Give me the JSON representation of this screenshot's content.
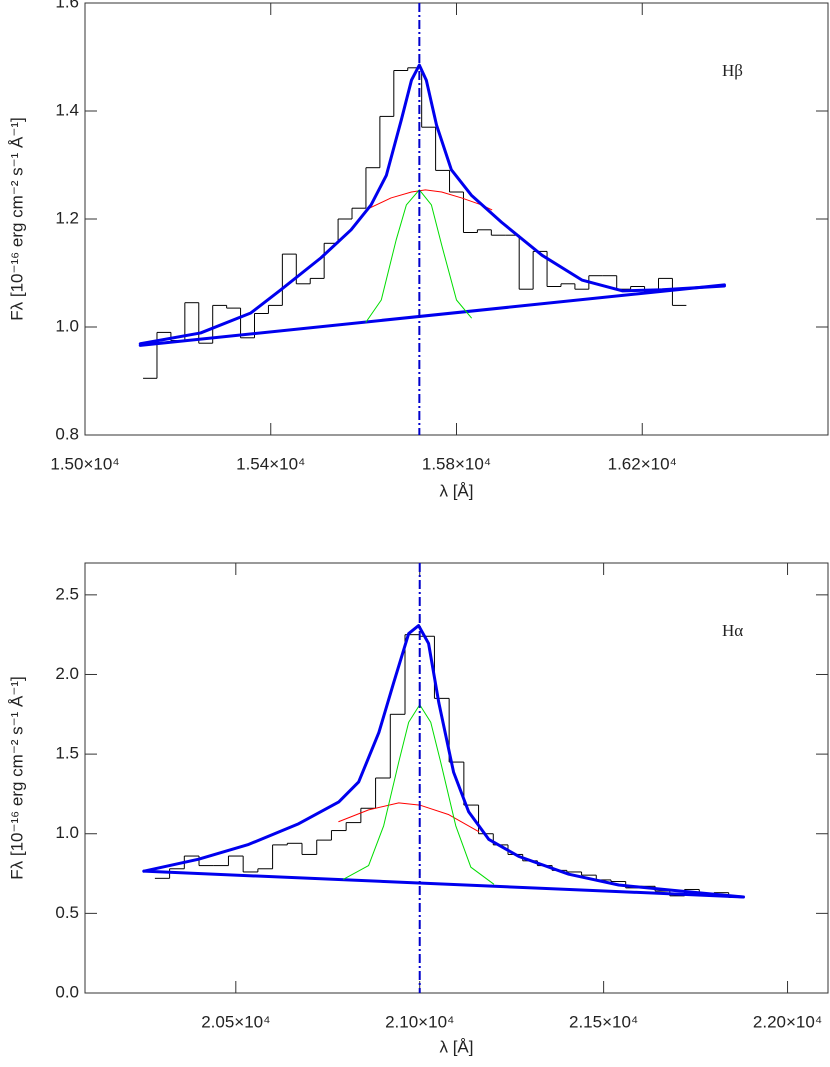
{
  "chart_data": [
    {
      "type": "line",
      "xlabel": "λ [Å]",
      "ylabel": "Fλ [10⁻¹⁶ erg cm⁻² s⁻¹ Å⁻¹]",
      "annotation": "Hβ",
      "xlim": [
        15000,
        16600
      ],
      "ylim": [
        0.8,
        1.6
      ],
      "xticks": [
        {
          "value": 15000,
          "label": "1.50×10⁴"
        },
        {
          "value": 15400,
          "label": "1.54×10⁴"
        },
        {
          "value": 15800,
          "label": "1.58×10⁴"
        },
        {
          "value": 16200,
          "label": "1.62×10⁴"
        }
      ],
      "yticks": [
        0.8,
        {
          "value": 1.0,
          "label": "1.0"
        },
        1.2,
        1.4,
        1.6
      ],
      "vline": 15720,
      "vline_color": "#0000cc",
      "histogram": {
        "color": "#000000",
        "bins": [
          15125,
          15155,
          15185,
          15215,
          15245,
          15275,
          15305,
          15335,
          15365,
          15395,
          15425,
          15455,
          15485,
          15515,
          15545,
          15575,
          15605,
          15635,
          15665,
          15695,
          15725,
          15755,
          15785,
          15815,
          15845,
          15875,
          15905,
          15935,
          15965,
          15995,
          16025,
          16055,
          16085,
          16115,
          16145,
          16175,
          16205,
          16235,
          16265,
          16295
        ],
        "values": [
          0.905,
          0.99,
          0.975,
          1.045,
          0.97,
          1.04,
          1.035,
          0.98,
          1.025,
          1.04,
          1.135,
          1.08,
          1.09,
          1.155,
          1.2,
          1.22,
          1.295,
          1.39,
          1.475,
          1.48,
          1.37,
          1.29,
          1.25,
          1.175,
          1.18,
          1.17,
          1.17,
          1.07,
          1.14,
          1.075,
          1.08,
          1.07,
          1.095,
          1.095,
          1.07,
          1.075,
          1.065,
          1.09,
          1.04
        ]
      },
      "series": [
        {
          "color": "#0000ee",
          "width": 3,
          "x": [
            15119,
            16377
          ],
          "values": [
            0.966,
            1.078
          ]
        },
        {
          "color": "#ff0000",
          "width": 1,
          "x": [
            15605,
            15659,
            15703,
            15733,
            15768,
            15811,
            15854,
            15876
          ],
          "values": [
            1.217,
            1.239,
            1.25,
            1.254,
            1.25,
            1.239,
            1.226,
            1.217
          ]
        },
        {
          "color": "#00dd00",
          "width": 1,
          "x": [
            15605,
            15638,
            15670,
            15692,
            15720,
            15746,
            15768,
            15800,
            15832
          ],
          "values": [
            1.009,
            1.05,
            1.161,
            1.226,
            1.254,
            1.226,
            1.152,
            1.05,
            1.017
          ]
        },
        {
          "color": "#0000ee",
          "width": 3,
          "x": [
            15119,
            15249,
            15357,
            15422,
            15508,
            15573,
            15616,
            15649,
            15681,
            15703,
            15720,
            15735,
            15757,
            15789,
            15832,
            15897,
            15984,
            16070,
            16157,
            16243,
            16377
          ],
          "values": [
            0.969,
            0.989,
            1.026,
            1.069,
            1.128,
            1.18,
            1.226,
            1.281,
            1.383,
            1.457,
            1.485,
            1.457,
            1.374,
            1.291,
            1.244,
            1.194,
            1.133,
            1.087,
            1.067,
            1.069,
            1.076
          ]
        }
      ]
    },
    {
      "type": "line",
      "xlabel": "λ [Å]",
      "ylabel": "Fλ [10⁻¹⁶ erg cm⁻² s⁻¹ Å⁻¹]",
      "annotation": "Hα",
      "xlim": [
        20090,
        22110
      ],
      "ylim": [
        0,
        2.7
      ],
      "xticks": [
        {
          "value": 20500,
          "label": "2.05×10⁴"
        },
        {
          "value": 21000,
          "label": "2.10×10⁴"
        },
        {
          "value": 21500,
          "label": "2.15×10⁴"
        },
        {
          "value": 22000,
          "label": "2.20×10⁴"
        }
      ],
      "yticks": [
        {
          "value": 0,
          "label": "0.0"
        },
        0.5,
        {
          "value": 1.0,
          "label": "1.0"
        },
        1.5,
        {
          "value": 2.0,
          "label": "2.0"
        },
        2.5
      ],
      "vline": 21000,
      "vline_color": "#0000cc",
      "histogram": {
        "color": "#000000",
        "bins": [
          20280,
          20320,
          20360,
          20400,
          20440,
          20480,
          20520,
          20560,
          20600,
          20640,
          20680,
          20720,
          20760,
          20800,
          20840,
          20880,
          20920,
          20960,
          21000,
          21040,
          21080,
          21120,
          21160,
          21200,
          21240,
          21280,
          21320,
          21360,
          21400,
          21440,
          21480,
          21520,
          21560,
          21600,
          21640,
          21680,
          21720,
          21760,
          21800,
          21840,
          21880
        ],
        "values": [
          0.72,
          0.78,
          0.86,
          0.8,
          0.8,
          0.86,
          0.76,
          0.78,
          0.93,
          0.94,
          0.87,
          0.96,
          1.02,
          1.07,
          1.16,
          1.35,
          1.75,
          2.25,
          2.24,
          1.85,
          1.45,
          1.18,
          1.0,
          0.93,
          0.87,
          0.83,
          0.8,
          0.77,
          0.76,
          0.74,
          0.71,
          0.7,
          0.66,
          0.67,
          0.64,
          0.61,
          0.65,
          0.61,
          0.63,
          0.6
        ]
      },
      "series": [
        {
          "color": "#0000ee",
          "width": 3,
          "x": [
            20250,
            21880
          ],
          "values": [
            0.765,
            0.603
          ]
        },
        {
          "color": "#ff0000",
          "width": 1,
          "x": [
            20780,
            20861,
            20943,
            21000,
            21079,
            21160
          ],
          "values": [
            1.076,
            1.15,
            1.194,
            1.18,
            1.12,
            1.014
          ]
        },
        {
          "color": "#00dd00",
          "width": 1,
          "x": [
            20793,
            20861,
            20902,
            20943,
            20970,
            21000,
            21030,
            21057,
            21098,
            21139,
            21201
          ],
          "values": [
            0.715,
            0.8,
            1.05,
            1.45,
            1.7,
            1.81,
            1.7,
            1.45,
            1.05,
            0.79,
            0.684
          ]
        },
        {
          "color": "#0000ee",
          "width": 3,
          "x": [
            20250,
            20399,
            20535,
            20671,
            20780,
            20834,
            20889,
            20929,
            20970,
            20997,
            21024,
            21052,
            21092,
            21133,
            21188,
            21269,
            21405,
            21541,
            21704,
            21880
          ],
          "values": [
            0.765,
            0.84,
            0.933,
            1.063,
            1.2,
            1.325,
            1.636,
            1.947,
            2.257,
            2.307,
            2.195,
            1.822,
            1.387,
            1.138,
            0.964,
            0.858,
            0.746,
            0.678,
            0.641,
            0.603
          ]
        }
      ]
    }
  ]
}
